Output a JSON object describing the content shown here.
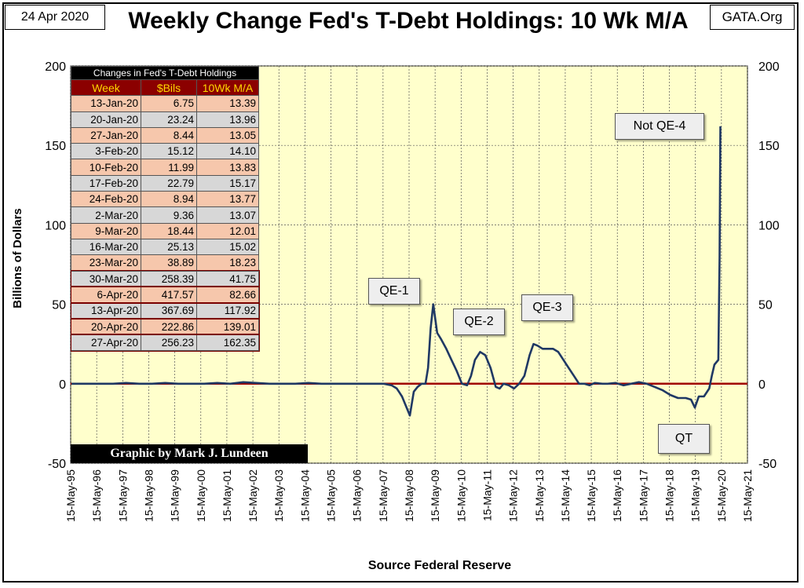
{
  "header": {
    "date": "24 Apr 2020",
    "site": "GATA.Org",
    "title": "Weekly Change Fed's T-Debt Holdings: 10 Wk M/A"
  },
  "footer": {
    "source": "Source Federal Reserve",
    "credit": "Graphic by Mark J. Lundeen"
  },
  "table": {
    "caption": "Changes in Fed's T-Debt Holdings",
    "columns": [
      "Week",
      "$Bils",
      "10Wk M/A"
    ],
    "rows": [
      [
        "13-Jan-20",
        "6.75",
        "13.39"
      ],
      [
        "20-Jan-20",
        "23.24",
        "13.96"
      ],
      [
        "27-Jan-20",
        "8.44",
        "13.05"
      ],
      [
        "3-Feb-20",
        "15.12",
        "14.10"
      ],
      [
        "10-Feb-20",
        "11.99",
        "13.83"
      ],
      [
        "17-Feb-20",
        "22.79",
        "15.17"
      ],
      [
        "24-Feb-20",
        "8.94",
        "13.77"
      ],
      [
        "2-Mar-20",
        "9.36",
        "13.07"
      ],
      [
        "9-Mar-20",
        "18.44",
        "12.01"
      ],
      [
        "16-Mar-20",
        "25.13",
        "15.02"
      ],
      [
        "23-Mar-20",
        "38.89",
        "18.23"
      ],
      [
        "30-Mar-20",
        "258.39",
        "41.75"
      ],
      [
        "6-Apr-20",
        "417.57",
        "82.66"
      ],
      [
        "13-Apr-20",
        "367.69",
        "117.92"
      ],
      [
        "20-Apr-20",
        "222.86",
        "139.01"
      ],
      [
        "27-Apr-20",
        "256.23",
        "162.35"
      ]
    ]
  },
  "annotations": [
    {
      "label": "QE-1"
    },
    {
      "label": "QE-2"
    },
    {
      "label": "QE-3"
    },
    {
      "label": "Not QE-4"
    },
    {
      "label": "QT"
    }
  ],
  "colors": {
    "plot_bg": "#ffffcc",
    "line": "#1f3864",
    "zero_line": "#a00000",
    "table_header_bg": "#8b0000",
    "table_header_text": "#ffd800"
  },
  "chart_data": {
    "type": "line",
    "title": "Weekly Change Fed's T-Debt Holdings: 10 Wk M/A",
    "xlabel": "Source Federal Reserve",
    "ylabel": "Billions  of  Dollars",
    "ylim": [
      -50,
      200
    ],
    "yticks": [
      "200",
      "150",
      "100",
      "50",
      "0",
      "-50"
    ],
    "grid": true,
    "x_tick_labels": [
      "15-May-95",
      "15-May-96",
      "15-May-97",
      "15-May-98",
      "15-May-99",
      "15-May-00",
      "15-May-01",
      "15-May-02",
      "15-May-03",
      "15-May-04",
      "15-May-05",
      "15-May-06",
      "15-May-07",
      "15-May-08",
      "15-May-09",
      "15-May-10",
      "15-May-11",
      "15-May-12",
      "15-May-13",
      "15-May-14",
      "15-May-15",
      "15-May-16",
      "15-May-17",
      "15-May-18",
      "15-May-19",
      "15-May-20",
      "15-May-21"
    ],
    "series": [
      {
        "x": [
          1995.4,
          1996.0,
          1996.5,
          1997.0,
          1997.5,
          1998.0,
          1998.5,
          1999.0,
          1999.5,
          2000.0,
          2000.5,
          2001.0,
          2001.5,
          2002.0,
          2002.5,
          2003.0,
          2003.5,
          2004.0,
          2004.5,
          2005.0,
          2005.5,
          2006.0,
          2006.5,
          2007.0,
          2007.4,
          2007.7,
          2007.9,
          2008.1,
          2008.25,
          2008.4,
          2008.55,
          2008.7,
          2008.85,
          2009.0,
          2009.1,
          2009.2,
          2009.3,
          2009.45,
          2009.6,
          2009.8,
          2010.0,
          2010.2,
          2010.4,
          2010.6,
          2010.75,
          2010.9,
          2011.1,
          2011.3,
          2011.5,
          2011.7,
          2011.85,
          2012.0,
          2012.2,
          2012.4,
          2012.6,
          2012.8,
          2013.0,
          2013.15,
          2013.3,
          2013.5,
          2013.7,
          2013.9,
          2014.1,
          2014.3,
          2014.5,
          2014.7,
          2014.9,
          2015.1,
          2015.3,
          2015.5,
          2015.8,
          2016.0,
          2016.3,
          2016.6,
          2016.9,
          2017.2,
          2017.5,
          2017.8,
          2018.1,
          2018.4,
          2018.7,
          2019.0,
          2019.2,
          2019.35,
          2019.5,
          2019.7,
          2019.9,
          2020.0,
          2020.1,
          2020.2,
          2020.25,
          2020.3,
          2020.33
        ],
        "y": [
          0,
          0,
          0,
          0,
          0.5,
          0,
          0,
          0.5,
          0,
          0,
          0,
          0.5,
          0,
          1,
          0.5,
          0,
          0,
          0,
          0.5,
          0,
          0,
          0,
          0,
          0,
          0,
          -1,
          -3,
          -8,
          -14,
          -20,
          -5,
          -2,
          0,
          0,
          10,
          35,
          50,
          32,
          28,
          22,
          15,
          8,
          0,
          -1,
          5,
          15,
          20,
          18,
          10,
          -2,
          -3,
          0,
          -1,
          -3,
          0,
          5,
          18,
          25,
          24,
          22,
          22,
          22,
          20,
          15,
          10,
          5,
          0,
          0,
          -1,
          0.5,
          0,
          0,
          0.5,
          -1,
          0,
          1,
          0,
          -2,
          -4,
          -7,
          -9,
          -9,
          -10,
          -15,
          -8,
          -8,
          -3,
          5,
          12,
          14,
          15,
          80,
          162
        ]
      }
    ]
  }
}
